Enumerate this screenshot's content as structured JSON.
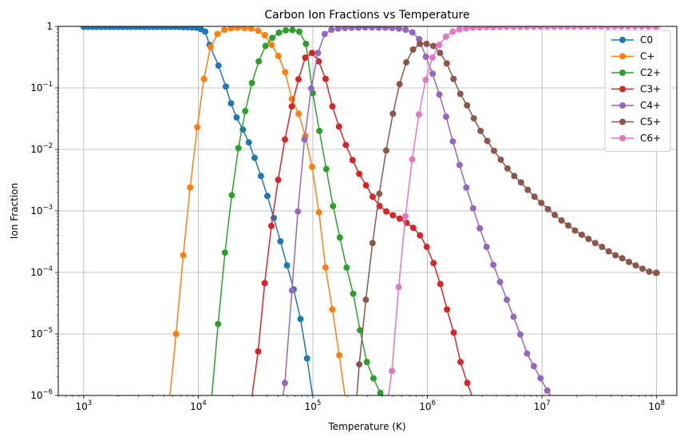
{
  "chart_data": {
    "type": "line",
    "title": "Carbon Ion Fractions vs Temperature",
    "xlabel": "Temperature (K)",
    "ylabel": "Ion Fraction",
    "xscale": "log",
    "yscale": "log",
    "xlim": [
      600,
      150000000
    ],
    "ylim": [
      1e-06,
      1
    ],
    "grid": true,
    "legend_position": "top-right",
    "x_ticks": [
      {
        "value": 1000,
        "base": "10",
        "exp": "3"
      },
      {
        "value": 10000,
        "base": "10",
        "exp": "4"
      },
      {
        "value": 100000,
        "base": "10",
        "exp": "5"
      },
      {
        "value": 1000000,
        "base": "10",
        "exp": "6"
      },
      {
        "value": 10000000,
        "base": "10",
        "exp": "7"
      },
      {
        "value": 100000000,
        "base": "10",
        "exp": "8"
      }
    ],
    "y_ticks": [
      {
        "value": 1e-06,
        "base": "10",
        "exp": "−6"
      },
      {
        "value": 1e-05,
        "base": "10",
        "exp": "−5"
      },
      {
        "value": 0.0001,
        "base": "10",
        "exp": "−4"
      },
      {
        "value": 0.001,
        "base": "10",
        "exp": "−3"
      },
      {
        "value": 0.01,
        "base": "10",
        "exp": "−2"
      },
      {
        "value": 0.1,
        "base": "10",
        "exp": "−1"
      },
      {
        "value": 1,
        "text": "1"
      }
    ],
    "series": [
      {
        "name": "C0",
        "color": "#1f77b4",
        "points": [
          [
            1000,
            0.98
          ],
          [
            1091,
            0.98
          ],
          [
            1190,
            0.98
          ],
          [
            1298,
            0.98
          ],
          [
            1417,
            0.98
          ],
          [
            1546,
            0.98
          ],
          [
            1687,
            0.98
          ],
          [
            1840,
            0.98
          ],
          [
            2008,
            0.98
          ],
          [
            2191,
            0.98
          ],
          [
            2391,
            0.98
          ],
          [
            2609,
            0.98
          ],
          [
            2847,
            0.98
          ],
          [
            3106,
            0.98
          ],
          [
            3389,
            0.98
          ],
          [
            3698,
            0.98
          ],
          [
            4035,
            0.98
          ],
          [
            4402,
            0.98
          ],
          [
            4803,
            0.98
          ],
          [
            5241,
            0.98
          ],
          [
            5719,
            0.98
          ],
          [
            6240,
            0.98
          ],
          [
            6808,
            0.98
          ],
          [
            7429,
            0.97
          ],
          [
            8106,
            0.97
          ],
          [
            8845,
            0.96
          ],
          [
            9650,
            0.95
          ],
          [
            10530,
            0.9
          ],
          [
            11488,
            0.82
          ],
          [
            12536,
            0.5
          ],
          [
            15000,
            0.23
          ],
          [
            17400,
            0.105
          ],
          [
            19300,
            0.056
          ],
          [
            21600,
            0.033
          ],
          [
            24500,
            0.021
          ],
          [
            27600,
            0.013
          ],
          [
            31000,
            0.0073
          ],
          [
            35200,
            0.0037
          ],
          [
            40100,
            0.00175
          ],
          [
            45600,
            0.00077
          ],
          [
            52100,
            0.00032
          ],
          [
            59500,
            0.00013
          ],
          [
            68000,
            5.3e-05
          ],
          [
            78000,
            1.75e-05
          ],
          [
            89000,
            4e-06
          ],
          [
            101000,
            8e-07
          ]
        ]
      },
      {
        "name": "C+",
        "color": "#ff7f0e",
        "points": [
          [
            5600,
            8e-07
          ],
          [
            6400,
            1e-05
          ],
          [
            7400,
            0.00019
          ],
          [
            8500,
            0.0024
          ],
          [
            9800,
            0.023
          ],
          [
            11200,
            0.14
          ],
          [
            12800,
            0.46
          ],
          [
            14700,
            0.75
          ],
          [
            16900,
            0.88
          ],
          [
            19300,
            0.93
          ],
          [
            22100,
            0.95
          ],
          [
            25300,
            0.94
          ],
          [
            29000,
            0.92
          ],
          [
            33300,
            0.85
          ],
          [
            38000,
            0.72
          ],
          [
            43700,
            0.5
          ],
          [
            50000,
            0.33
          ],
          [
            57300,
            0.18
          ],
          [
            65600,
            0.066
          ],
          [
            75100,
            0.038
          ],
          [
            86000,
            0.0165
          ],
          [
            98500,
            0.0052
          ],
          [
            113000,
            0.00095
          ],
          [
            129000,
            0.00012
          ],
          [
            148000,
            2.5e-05
          ],
          [
            170000,
            4.5e-06
          ],
          [
            192000,
            9e-07
          ]
        ]
      },
      {
        "name": "C2+",
        "color": "#2ca02c",
        "points": [
          [
            13000,
            8e-07
          ],
          [
            14900,
            1.45e-05
          ],
          [
            17100,
            0.00021
          ],
          [
            19600,
            0.0018
          ],
          [
            22400,
            0.0105
          ],
          [
            25700,
            0.042
          ],
          [
            29400,
            0.12
          ],
          [
            33700,
            0.27
          ],
          [
            38600,
            0.48
          ],
          [
            44200,
            0.65
          ],
          [
            50600,
            0.79
          ],
          [
            58000,
            0.86
          ],
          [
            66400,
            0.87
          ],
          [
            76100,
            0.82
          ],
          [
            87100,
            0.52
          ],
          [
            99800,
            0.082
          ],
          [
            114000,
            0.02
          ],
          [
            131000,
            0.0048
          ],
          [
            150000,
            0.0012
          ],
          [
            172000,
            0.00037
          ],
          [
            197000,
            0.00012
          ],
          [
            225000,
            4.5e-05
          ],
          [
            258000,
            1.15e-05
          ],
          [
            296000,
            3.5e-06
          ],
          [
            338000,
            1.9e-06
          ],
          [
            388000,
            1.1e-06
          ],
          [
            444000,
            8e-07
          ]
        ]
      },
      {
        "name": "C3+",
        "color": "#d62728",
        "points": [
          [
            29000,
            8e-07
          ],
          [
            33300,
            5.2e-06
          ],
          [
            38000,
            6.7e-05
          ],
          [
            43500,
            0.00057
          ],
          [
            49800,
            0.0032
          ],
          [
            57100,
            0.0145
          ],
          [
            65400,
            0.05
          ],
          [
            74900,
            0.138
          ],
          [
            85800,
            0.31
          ],
          [
            98300,
            0.37
          ],
          [
            112500,
            0.27
          ],
          [
            129000,
            0.14
          ],
          [
            148000,
            0.05
          ],
          [
            169000,
            0.0235
          ],
          [
            194000,
            0.0118
          ],
          [
            222000,
            0.0067
          ],
          [
            254000,
            0.004
          ],
          [
            291000,
            0.0026
          ],
          [
            333000,
            0.0017
          ],
          [
            382000,
            0.0012
          ],
          [
            437000,
            0.00098
          ],
          [
            500000,
            0.00085
          ],
          [
            573000,
            0.00075
          ],
          [
            657000,
            0.00064
          ],
          [
            752000,
            0.00053
          ],
          [
            861000,
            0.0004
          ],
          [
            986000,
            0.00026
          ],
          [
            1130000,
            0.000142
          ],
          [
            1294000,
            6.5e-05
          ],
          [
            1482000,
            2.5e-05
          ],
          [
            1697000,
            1.05e-05
          ],
          [
            1943000,
            3.5e-06
          ],
          [
            2226000,
            1.6e-06
          ],
          [
            2549000,
            8e-07
          ]
        ]
      },
      {
        "name": "C4+",
        "color": "#9467bd",
        "points": [
          [
            54000,
            8e-07
          ],
          [
            57000,
            1.6e-06
          ],
          [
            65700,
            5.1e-05
          ],
          [
            74000,
            0.00098
          ],
          [
            84500,
            0.0145
          ],
          [
            96800,
            0.098
          ],
          [
            110800,
            0.37
          ],
          [
            126900,
            0.75
          ],
          [
            145300,
            0.88
          ],
          [
            166400,
            0.92
          ],
          [
            190500,
            0.94
          ],
          [
            218200,
            0.95
          ],
          [
            249800,
            0.95
          ],
          [
            286100,
            0.96
          ],
          [
            327600,
            0.96
          ],
          [
            375200,
            0.95
          ],
          [
            429600,
            0.95
          ],
          [
            492000,
            0.94
          ],
          [
            563400,
            0.92
          ],
          [
            645100,
            0.88
          ],
          [
            738800,
            0.8
          ],
          [
            846000,
            0.62
          ],
          [
            968800,
            0.32
          ],
          [
            1109000,
            0.17
          ],
          [
            1270000,
            0.078
          ],
          [
            1455000,
            0.034
          ],
          [
            1666000,
            0.0135
          ],
          [
            1908000,
            0.0056
          ],
          [
            2185000,
            0.0024
          ],
          [
            2502000,
            0.0011
          ],
          [
            2865000,
            0.00052
          ],
          [
            3281000,
            0.00026
          ],
          [
            3757000,
            0.000133
          ],
          [
            4303000,
            7e-05
          ],
          [
            4927000,
            3.6e-05
          ],
          [
            5642000,
            1.9e-05
          ],
          [
            6461000,
            9.8e-06
          ],
          [
            7399000,
            4.8e-06
          ],
          [
            8473000,
            3e-06
          ],
          [
            9703000,
            1.9e-06
          ],
          [
            11111000,
            1.2e-06
          ],
          [
            12724000,
            8e-07
          ]
        ]
      },
      {
        "name": "C5+",
        "color": "#8c564b",
        "points": [
          [
            240000,
            8e-07
          ],
          [
            254000,
            3.2e-06
          ],
          [
            290000,
            3.6e-05
          ],
          [
            332000,
            0.0003
          ],
          [
            380000,
            0.0019
          ],
          [
            436000,
            0.0096
          ],
          [
            500000,
            0.038
          ],
          [
            571000,
            0.115
          ],
          [
            654000,
            0.26
          ],
          [
            749000,
            0.42
          ],
          [
            858000,
            0.52
          ],
          [
            982000,
            0.52
          ],
          [
            1125000,
            0.48
          ],
          [
            1288000,
            0.37
          ],
          [
            1475000,
            0.25
          ],
          [
            1689000,
            0.14
          ],
          [
            1934000,
            0.08
          ],
          [
            2215000,
            0.052
          ],
          [
            2537000,
            0.032
          ],
          [
            2905000,
            0.02
          ],
          [
            3327000,
            0.0137
          ],
          [
            3810000,
            0.0095
          ],
          [
            4363000,
            0.0068
          ],
          [
            4997000,
            0.0049
          ],
          [
            5722000,
            0.0037
          ],
          [
            6553000,
            0.0029
          ],
          [
            7505000,
            0.0022
          ],
          [
            8595000,
            0.0017
          ],
          [
            9843000,
            0.00135
          ],
          [
            11272000,
            0.00107
          ],
          [
            12909000,
            0.00086
          ],
          [
            14784000,
            0.0007
          ],
          [
            16931000,
            0.00058
          ],
          [
            19389000,
            0.00048
          ],
          [
            22205000,
            0.00041
          ],
          [
            25429000,
            0.00035
          ],
          [
            29122000,
            0.0003
          ],
          [
            33351000,
            0.00026
          ],
          [
            38194000,
            0.00022
          ],
          [
            43740000,
            0.00019
          ],
          [
            50092000,
            0.00017
          ],
          [
            57366000,
            0.000148
          ],
          [
            65697000,
            0.00013
          ],
          [
            75237000,
            0.000115
          ],
          [
            86163000,
            0.000103
          ],
          [
            98675000,
            9.85e-05
          ],
          [
            100000000,
            9.85e-05
          ]
        ]
      },
      {
        "name": "C6+",
        "color": "#e377c2",
        "points": [
          [
            450000,
            8e-07
          ],
          [
            490000,
            2.5e-06
          ],
          [
            561000,
            5.8e-05
          ],
          [
            643000,
            0.00082
          ],
          [
            736000,
            0.0069
          ],
          [
            843000,
            0.037
          ],
          [
            966000,
            0.135
          ],
          [
            1106000,
            0.31
          ],
          [
            1267000,
            0.5
          ],
          [
            1451000,
            0.68
          ],
          [
            1661000,
            0.82
          ],
          [
            1903000,
            0.89
          ],
          [
            2179000,
            0.93
          ],
          [
            2495000,
            0.95
          ],
          [
            2858000,
            0.96
          ],
          [
            3273000,
            0.97
          ],
          [
            3748000,
            0.97
          ],
          [
            4293000,
            0.975
          ],
          [
            4916000,
            0.978
          ],
          [
            5630000,
            0.98
          ],
          [
            6448000,
            0.98
          ],
          [
            7384000,
            0.982
          ],
          [
            8457000,
            0.984
          ],
          [
            9685000,
            0.985
          ],
          [
            11091000,
            0.986
          ],
          [
            12702000,
            0.987
          ],
          [
            14547000,
            0.988
          ],
          [
            16659000,
            0.989
          ],
          [
            19079000,
            0.99
          ],
          [
            21849000,
            0.99
          ],
          [
            25022000,
            0.991
          ],
          [
            28656000,
            0.992
          ],
          [
            32817000,
            0.992
          ],
          [
            37583000,
            0.993
          ],
          [
            43041000,
            0.993
          ],
          [
            49292000,
            0.994
          ],
          [
            56450000,
            0.994
          ],
          [
            64648000,
            0.995
          ],
          [
            74036000,
            0.995
          ],
          [
            84787000,
            0.996
          ],
          [
            97100000,
            0.996
          ],
          [
            100000000,
            0.996
          ]
        ]
      }
    ]
  }
}
